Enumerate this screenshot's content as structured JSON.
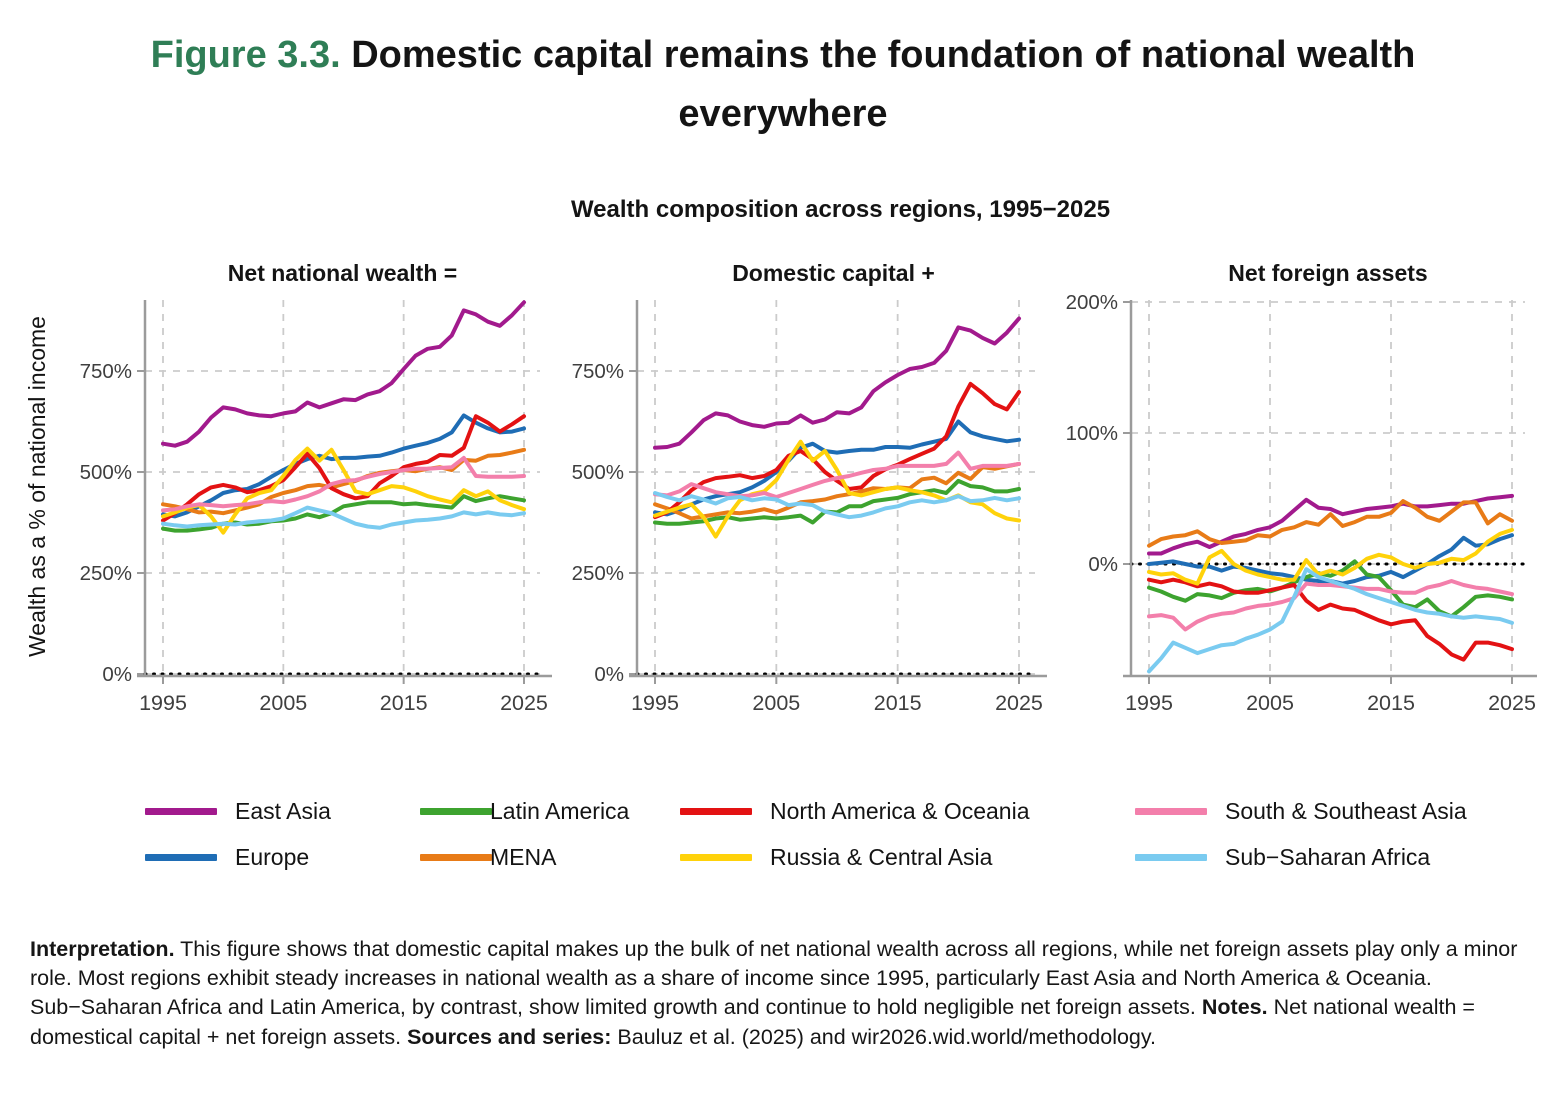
{
  "page": {
    "figure_label": "Figure 3.3.",
    "figure_title": " Domestic capital remains the foundation of national wealth everywhere",
    "subtitle": "Wealth composition across regions, 1995−2025",
    "y_axis_label": "Wealth as a % of national income"
  },
  "colors": {
    "east_asia": "#A21A8D",
    "europe": "#1F6DB5",
    "latin_america": "#3DA32F",
    "mena": "#E87B17",
    "north_america_oceania": "#E31213",
    "russia_central_asia": "#FFD20A",
    "south_southeast_asia": "#F37FAB",
    "sub_saharan_africa": "#7ACBF0",
    "figure_label_green": "#2F7E56",
    "axis": "#9B9B9B",
    "grid": "#CBCBCB",
    "tick_text": "#3F3F3F",
    "zero_line": "#000000"
  },
  "legend": {
    "rows": [
      [
        {
          "label": "East Asia",
          "color": "east_asia"
        },
        {
          "label": "Latin America",
          "color": "latin_america"
        },
        {
          "label": "North America & Oceania",
          "color": "north_america_oceania"
        },
        {
          "label": "South & Southeast Asia",
          "color": "south_southeast_asia"
        }
      ],
      [
        {
          "label": "Europe",
          "color": "europe"
        },
        {
          "label": "MENA",
          "color": "mena"
        },
        {
          "label": "Russia & Central Asia",
          "color": "russia_central_asia"
        },
        {
          "label": "Sub−Saharan Africa",
          "color": "sub_saharan_africa"
        }
      ]
    ]
  },
  "interpretation": {
    "label": "Interpretation.",
    "text": "This figure shows that domestic capital makes up the bulk of net national wealth across all regions, while net foreign assets play only a minor role. Most regions exhibit steady increases in national wealth as a share of income since 1995, particularly East Asia and North America & Oceania. Sub−Saharan Africa and Latin America, by contrast, show limited growth and continue to hold negligible net foreign assets.",
    "notes_label": "Notes.",
    "notes_text": "Net national wealth = domestical capital + net foreign assets.",
    "sources_label": "Sources and series:",
    "sources_text": "Bauluz et al. (2025) and wir2026.wid.world/methodology."
  },
  "chart_data": [
    {
      "type": "line",
      "title": "Net national wealth =",
      "ylabel": "Wealth as a % of national income",
      "x": {
        "start": 1995,
        "end": 2025,
        "ticks": [
          1995,
          2005,
          2015,
          2025
        ]
      },
      "ylim": [
        0,
        925
      ],
      "yticks": {
        "values": [
          0,
          250,
          500,
          750
        ],
        "labels": [
          "0%",
          "250%",
          "500%",
          "750%"
        ]
      },
      "grid": true,
      "series": [
        {
          "name": "East Asia",
          "color": "east_asia",
          "values": [
            570,
            565,
            575,
            600,
            635,
            660,
            655,
            645,
            640,
            638,
            645,
            650,
            672,
            660,
            670,
            680,
            678,
            692,
            700,
            720,
            755,
            788,
            805,
            810,
            838,
            900,
            890,
            872,
            862,
            888,
            920
          ]
        },
        {
          "name": "Europe",
          "color": "europe",
          "values": [
            395,
            390,
            400,
            415,
            430,
            448,
            455,
            458,
            470,
            488,
            505,
            520,
            532,
            540,
            532,
            535,
            535,
            538,
            540,
            548,
            558,
            565,
            572,
            582,
            598,
            640,
            622,
            608,
            598,
            600,
            608
          ]
        },
        {
          "name": "Latin America",
          "color": "latin_america",
          "values": [
            360,
            355,
            355,
            358,
            362,
            372,
            375,
            370,
            372,
            378,
            380,
            385,
            395,
            388,
            398,
            415,
            420,
            425,
            425,
            425,
            420,
            422,
            418,
            415,
            412,
            440,
            428,
            435,
            440,
            435,
            430
          ]
        },
        {
          "name": "MENA",
          "color": "mena",
          "values": [
            420,
            415,
            408,
            400,
            402,
            398,
            405,
            412,
            420,
            438,
            448,
            455,
            465,
            468,
            462,
            470,
            478,
            490,
            498,
            502,
            505,
            502,
            508,
            512,
            505,
            530,
            528,
            540,
            542,
            548,
            555
          ]
        },
        {
          "name": "North America & Oceania",
          "color": "north_america_oceania",
          "values": [
            380,
            398,
            420,
            445,
            462,
            468,
            462,
            450,
            455,
            465,
            480,
            512,
            545,
            510,
            460,
            445,
            435,
            440,
            472,
            490,
            512,
            520,
            525,
            542,
            540,
            560,
            638,
            622,
            600,
            618,
            638
          ]
        },
        {
          "name": "Russia & Central Asia",
          "color": "russia_central_asia",
          "values": [
            390,
            400,
            412,
            418,
            390,
            350,
            395,
            435,
            448,
            455,
            490,
            530,
            558,
            528,
            555,
            505,
            452,
            445,
            455,
            465,
            462,
            452,
            440,
            432,
            425,
            455,
            440,
            452,
            430,
            418,
            408
          ]
        },
        {
          "name": "South & Southeast Asia",
          "color": "south_southeast_asia",
          "values": [
            405,
            408,
            415,
            420,
            418,
            415,
            418,
            420,
            425,
            428,
            425,
            432,
            440,
            452,
            470,
            478,
            480,
            488,
            495,
            500,
            505,
            508,
            508,
            510,
            512,
            535,
            490,
            488,
            488,
            488,
            490
          ]
        },
        {
          "name": "Sub−Saharan Africa",
          "color": "sub_saharan_africa",
          "values": [
            372,
            368,
            365,
            368,
            370,
            372,
            370,
            375,
            378,
            380,
            385,
            398,
            412,
            405,
            398,
            385,
            372,
            365,
            362,
            370,
            375,
            380,
            382,
            385,
            390,
            400,
            395,
            400,
            395,
            393,
            398
          ]
        }
      ]
    },
    {
      "type": "line",
      "title": "Domestic capital +",
      "x": {
        "start": 1995,
        "end": 2025,
        "ticks": [
          1995,
          2005,
          2015,
          2025
        ]
      },
      "ylim": [
        0,
        925
      ],
      "yticks": {
        "values": [
          0,
          250,
          500,
          750
        ],
        "labels": [
          "0%",
          "250%",
          "500%",
          "750%"
        ]
      },
      "grid": true,
      "series": [
        {
          "name": "East Asia",
          "color": "east_asia",
          "values": [
            560,
            562,
            570,
            598,
            628,
            645,
            640,
            625,
            616,
            612,
            620,
            622,
            640,
            622,
            630,
            648,
            645,
            660,
            700,
            722,
            740,
            755,
            760,
            770,
            800,
            858,
            850,
            832,
            818,
            845,
            880
          ]
        },
        {
          "name": "Europe",
          "color": "europe",
          "values": [
            400,
            395,
            405,
            420,
            432,
            440,
            445,
            450,
            462,
            478,
            500,
            528,
            560,
            570,
            552,
            548,
            552,
            555,
            555,
            562,
            562,
            560,
            568,
            575,
            582,
            625,
            598,
            588,
            582,
            576,
            580
          ]
        },
        {
          "name": "Latin America",
          "color": "latin_america",
          "values": [
            375,
            372,
            372,
            375,
            378,
            385,
            388,
            382,
            385,
            388,
            385,
            388,
            392,
            375,
            402,
            400,
            415,
            415,
            428,
            432,
            436,
            445,
            450,
            455,
            448,
            478,
            465,
            462,
            452,
            452,
            458
          ]
        },
        {
          "name": "MENA",
          "color": "mena",
          "values": [
            420,
            410,
            398,
            385,
            390,
            395,
            400,
            398,
            402,
            408,
            400,
            412,
            425,
            428,
            432,
            440,
            445,
            452,
            460,
            458,
            462,
            460,
            482,
            486,
            472,
            498,
            483,
            512,
            508,
            514,
            520
          ]
        },
        {
          "name": "North America & Oceania",
          "color": "north_america_oceania",
          "values": [
            388,
            400,
            425,
            455,
            475,
            485,
            488,
            492,
            485,
            490,
            505,
            540,
            552,
            532,
            500,
            478,
            458,
            462,
            490,
            507,
            518,
            532,
            545,
            558,
            588,
            662,
            718,
            695,
            668,
            655,
            698
          ]
        },
        {
          "name": "Russia & Central Asia",
          "color": "russia_central_asia",
          "values": [
            392,
            402,
            412,
            420,
            388,
            340,
            390,
            430,
            445,
            452,
            480,
            530,
            575,
            528,
            552,
            505,
            448,
            442,
            450,
            458,
            462,
            455,
            450,
            442,
            430,
            442,
            425,
            420,
            398,
            385,
            380
          ]
        },
        {
          "name": "South & Southeast Asia",
          "color": "south_southeast_asia",
          "values": [
            445,
            442,
            452,
            470,
            460,
            450,
            445,
            440,
            442,
            448,
            438,
            448,
            458,
            468,
            478,
            485,
            490,
            498,
            505,
            508,
            515,
            515,
            515,
            515,
            520,
            548,
            508,
            515,
            515,
            515,
            520
          ]
        },
        {
          "name": "Sub−Saharan Africa",
          "color": "sub_saharan_africa",
          "values": [
            448,
            438,
            430,
            440,
            432,
            422,
            435,
            438,
            430,
            435,
            432,
            418,
            422,
            418,
            402,
            395,
            388,
            392,
            400,
            410,
            415,
            425,
            430,
            425,
            430,
            440,
            428,
            430,
            436,
            430,
            435
          ]
        }
      ]
    },
    {
      "type": "line",
      "title": "Net foreign assets",
      "x": {
        "start": 1995,
        "end": 2025,
        "ticks": [
          1995,
          2005,
          2015,
          2025
        ]
      },
      "ylim": [
        -86,
        202
      ],
      "yticks": {
        "values": [
          0,
          100,
          200
        ],
        "labels": [
          "0%",
          "100%",
          "200%"
        ]
      },
      "grid": true,
      "zero_line_dotted": true,
      "series": [
        {
          "name": "East Asia",
          "color": "east_asia",
          "values": [
            8,
            8,
            12,
            15,
            17,
            13,
            17,
            21,
            23,
            26,
            28,
            33,
            41,
            49,
            43,
            42,
            38,
            40,
            42,
            43,
            44,
            46,
            44,
            44,
            45,
            46,
            46,
            48,
            50,
            51,
            52
          ]
        },
        {
          "name": "Europe",
          "color": "europe",
          "values": [
            0,
            1,
            2,
            0,
            -2,
            -2,
            -5,
            -2,
            -3,
            -5,
            -7,
            -8,
            -10,
            -12,
            -13,
            -13,
            -15,
            -13,
            -10,
            -9,
            -6,
            -10,
            -5,
            0,
            6,
            11,
            20,
            14,
            15,
            19,
            22
          ]
        },
        {
          "name": "Latin America",
          "color": "latin_america",
          "values": [
            -18,
            -21,
            -25,
            -28,
            -23,
            -24,
            -26,
            -22,
            -20,
            -19,
            -21,
            -18,
            -14,
            -10,
            -7,
            -9,
            -5,
            2,
            -8,
            -10,
            -20,
            -31,
            -33,
            -27,
            -36,
            -40,
            -33,
            -25,
            -24,
            -25,
            -27
          ]
        },
        {
          "name": "MENA",
          "color": "mena",
          "values": [
            14,
            19,
            21,
            22,
            25,
            19,
            16,
            17,
            18,
            22,
            21,
            26,
            28,
            32,
            30,
            38,
            29,
            32,
            36,
            36,
            39,
            48,
            43,
            36,
            33,
            40,
            47,
            47,
            31,
            38,
            33
          ]
        },
        {
          "name": "North America & Oceania",
          "color": "north_america_oceania",
          "values": [
            -12,
            -14,
            -12,
            -14,
            -17,
            -15,
            -17,
            -21,
            -22,
            -22,
            -20,
            -18,
            -16,
            -28,
            -35,
            -31,
            -34,
            -35,
            -39,
            -43,
            -46,
            -44,
            -43,
            -55,
            -61,
            -69,
            -73,
            -60,
            -60,
            -62,
            -65
          ]
        },
        {
          "name": "Russia & Central Asia",
          "color": "russia_central_asia",
          "values": [
            -6,
            -8,
            -7,
            -12,
            -15,
            5,
            10,
            0,
            -5,
            -8,
            -10,
            -12,
            -12,
            3,
            -8,
            -5,
            -8,
            -3,
            4,
            7,
            5,
            0,
            -3,
            0,
            1,
            4,
            3,
            8,
            17,
            23,
            26
          ]
        },
        {
          "name": "South & Southeast Asia",
          "color": "south_southeast_asia",
          "values": [
            -40,
            -39,
            -41,
            -50,
            -44,
            -40,
            -38,
            -37,
            -34,
            -32,
            -31,
            -29,
            -26,
            -15,
            -16,
            -16,
            -17,
            -18,
            -19,
            -19,
            -21,
            -22,
            -22,
            -18,
            -16,
            -13,
            -16,
            -18,
            -19,
            -21,
            -23
          ]
        },
        {
          "name": "Sub−Saharan Africa",
          "color": "sub_saharan_africa",
          "values": [
            -82,
            -72,
            -60,
            -64,
            -68,
            -65,
            -62,
            -61,
            -57,
            -54,
            -50,
            -44,
            -25,
            -4,
            -10,
            -13,
            -16,
            -19,
            -23,
            -26,
            -29,
            -32,
            -35,
            -37,
            -38,
            -40,
            -41,
            -40,
            -41,
            -42,
            -45
          ]
        }
      ]
    }
  ]
}
